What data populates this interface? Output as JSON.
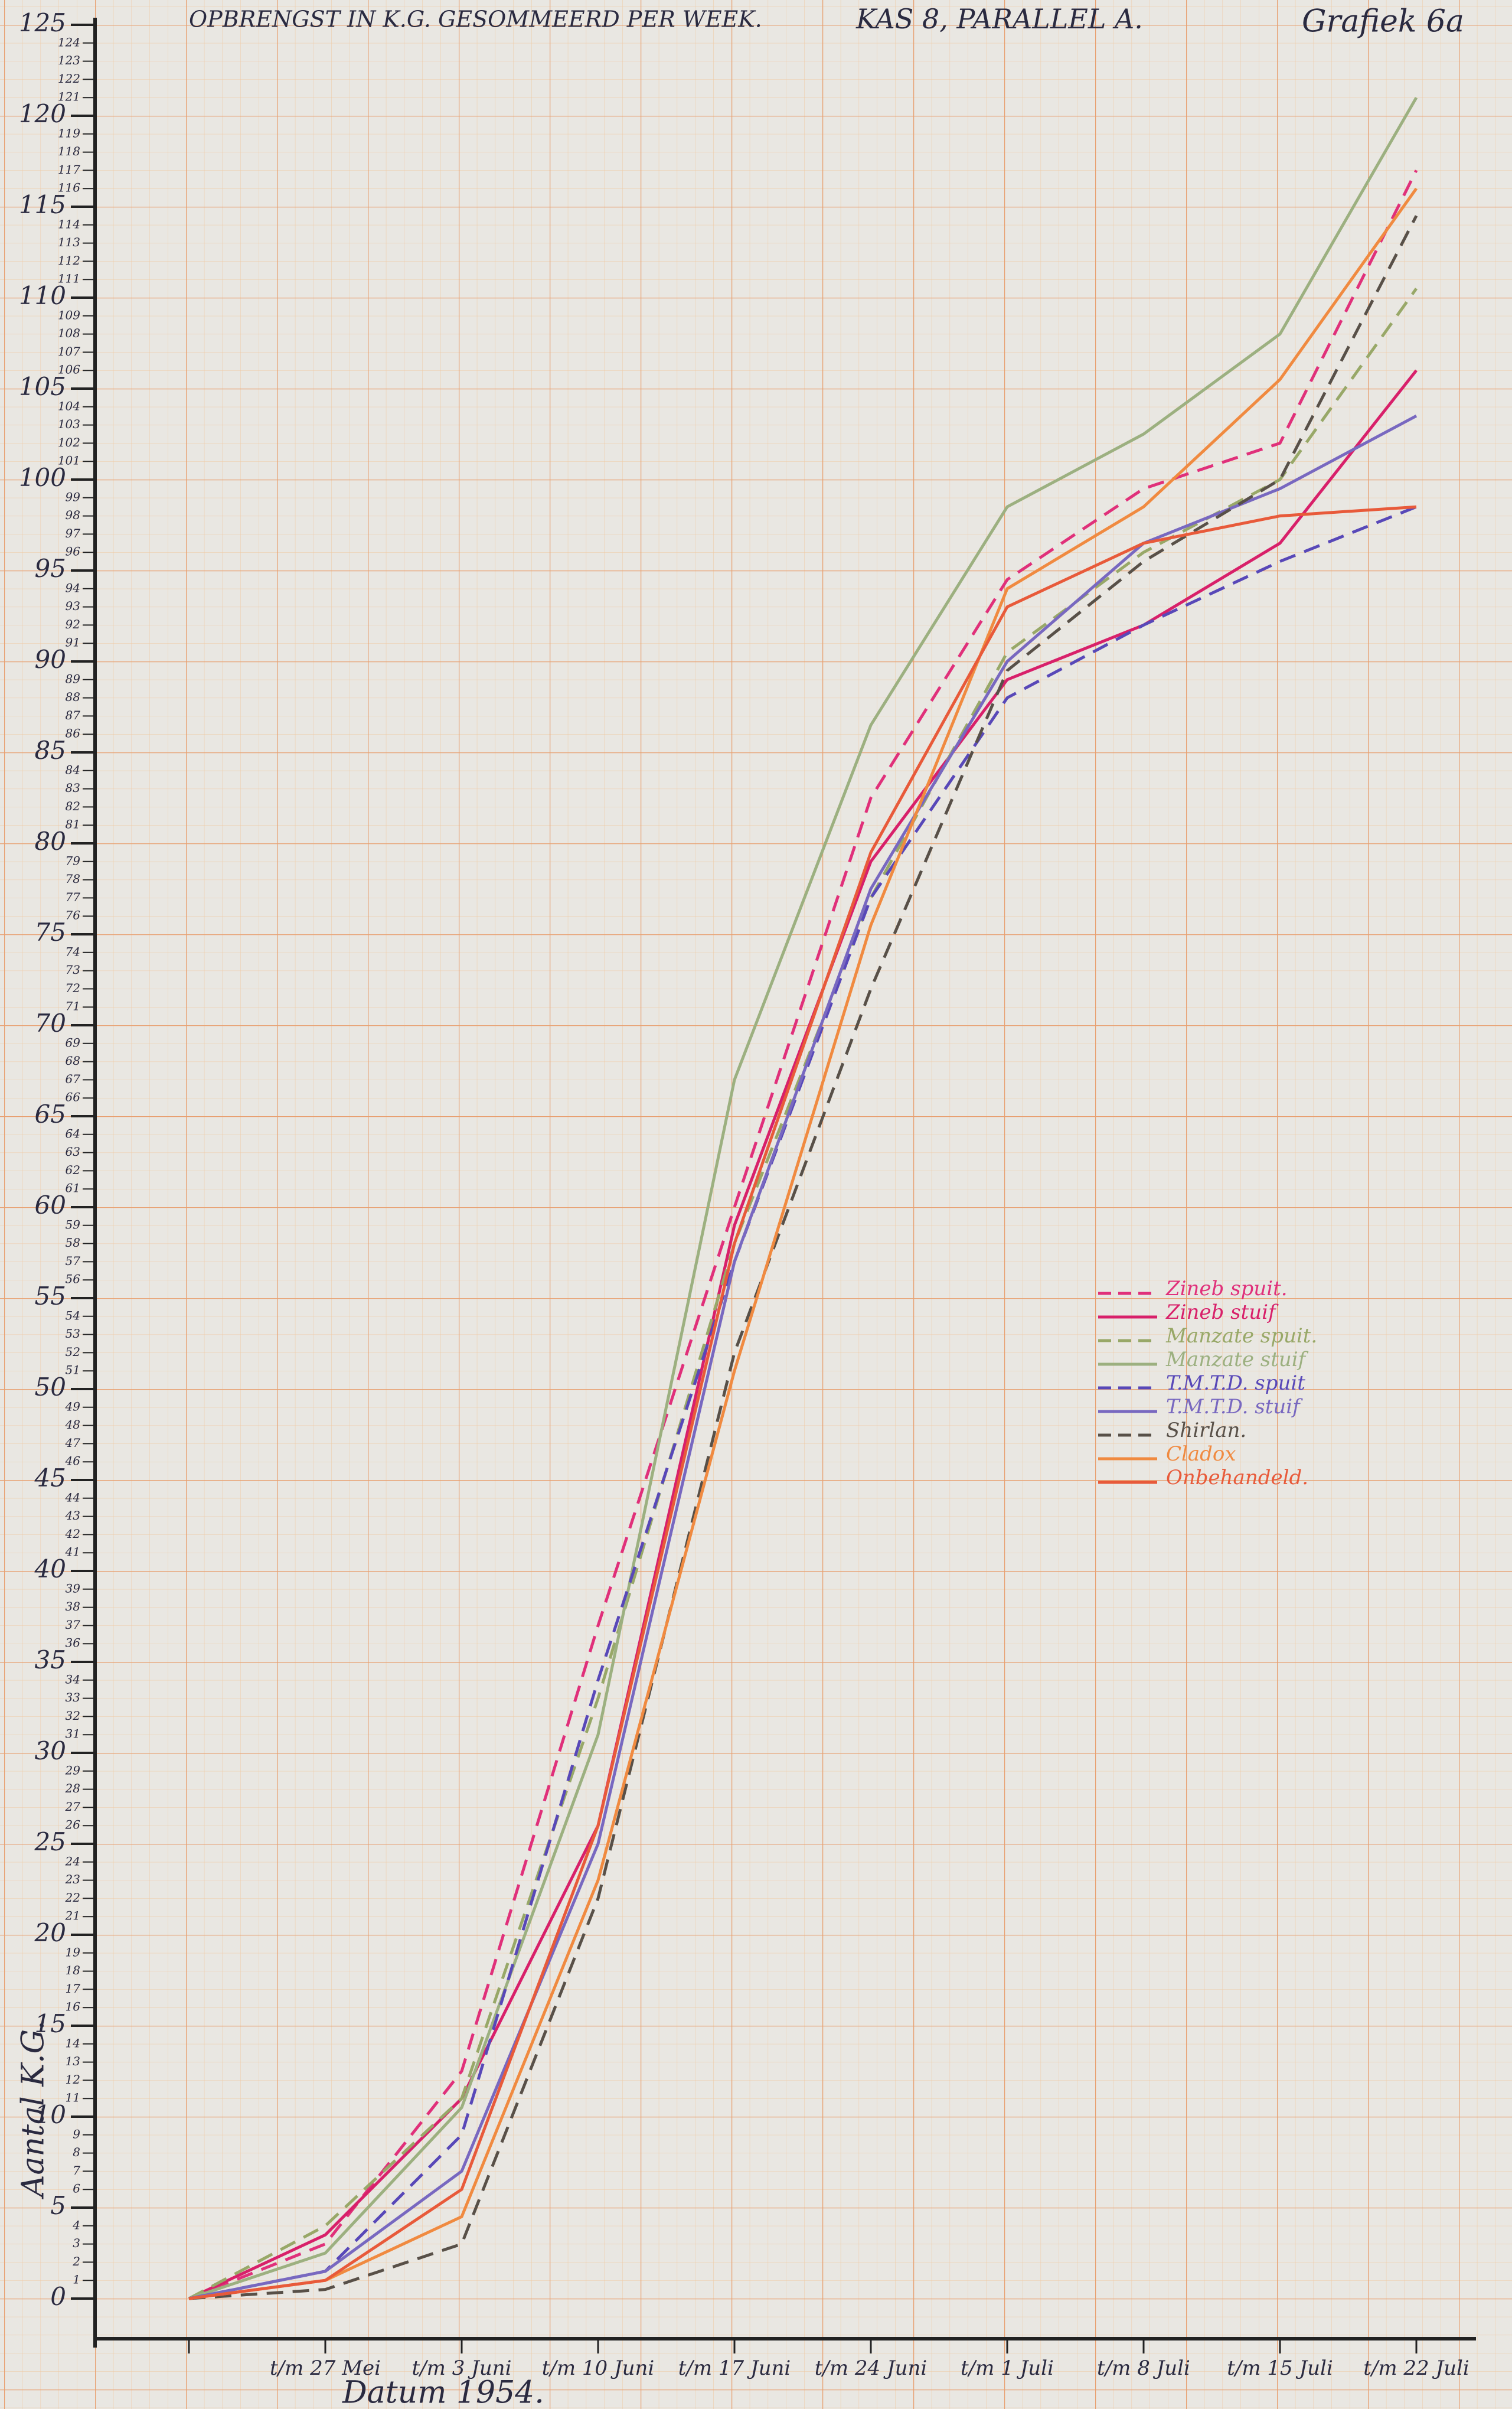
{
  "chart_data": {
    "type": "line",
    "title": "OPBRENGST IN K.G. GESOMMEERD PER WEEK.",
    "subtitle": "KAS 8, PARALLEL A.",
    "annotation": "Grafiek 6a",
    "y_label": "Aantal K.G.",
    "x_label": "Datum 1954.",
    "categories": [
      null,
      "t/m 27 Mei",
      "t/m 3 Juni",
      "t/m 10 Juni",
      "t/m 17 Juni",
      "t/m 24 Juni",
      "t/m 1 Juli",
      "t/m 8 Juli",
      "t/m 15 Juli",
      "t/m 22 Juli"
    ],
    "ylim": [
      0,
      125
    ],
    "yticks": [
      0,
      1,
      2,
      3,
      4,
      5,
      6,
      7,
      8,
      9,
      10,
      11,
      12,
      13,
      14,
      15,
      16,
      17,
      18,
      19,
      20,
      21,
      22,
      23,
      24,
      25,
      26,
      27,
      28,
      29,
      30,
      31,
      32,
      33,
      34,
      35,
      36,
      37,
      38,
      39,
      40,
      41,
      42,
      43,
      44,
      45,
      46,
      47,
      48,
      49,
      50,
      51,
      52,
      53,
      54,
      55,
      56,
      57,
      58,
      59,
      60,
      61,
      62,
      63,
      64,
      65,
      66,
      67,
      68,
      69,
      70,
      71,
      72,
      73,
      74,
      75,
      76,
      77,
      78,
      79,
      80,
      81,
      82,
      83,
      84,
      85,
      86,
      87,
      88,
      89,
      90,
      91,
      92,
      93,
      94,
      95,
      96,
      97,
      98,
      99,
      100,
      101,
      102,
      103,
      104,
      105,
      106,
      107,
      108,
      109,
      110,
      111,
      112,
      113,
      114,
      115,
      116,
      117,
      118,
      119,
      120,
      121,
      122,
      123,
      124,
      125
    ],
    "grid": true,
    "legend": "right",
    "series": [
      {
        "name": "Zineb spuit.",
        "color": "#e0307a",
        "dashed": true,
        "values": [
          0,
          3,
          12.5,
          37,
          60,
          82.5,
          94.5,
          99.5,
          102,
          117
        ]
      },
      {
        "name": "Zineb stuif",
        "color": "#d8206a",
        "dashed": false,
        "values": [
          0,
          3.5,
          11,
          26,
          59,
          79,
          89,
          92,
          96.5,
          106
        ]
      },
      {
        "name": "Manzate spuit.",
        "color": "#98a868",
        "dashed": true,
        "values": [
          0,
          4,
          11,
          33,
          58,
          77,
          90.5,
          96,
          100,
          110.5
        ]
      },
      {
        "name": "Manzate stuif",
        "color": "#9cb080",
        "dashed": false,
        "values": [
          0,
          2.5,
          10.5,
          31,
          67,
          86.5,
          98.5,
          102.5,
          108,
          121
        ]
      },
      {
        "name": "T.M.T.D. spuit",
        "color": "#5848b8",
        "dashed": true,
        "values": [
          0,
          1.5,
          9,
          34,
          57,
          77,
          88,
          92,
          95.5,
          98.5
        ]
      },
      {
        "name": "T.M.T.D. stuif",
        "color": "#7868c0",
        "dashed": false,
        "values": [
          0,
          1.5,
          7,
          25,
          57,
          77.5,
          90,
          96.5,
          99.5,
          103.5
        ]
      },
      {
        "name": "Shirlan.",
        "color": "#585048",
        "dashed": true,
        "values": [
          0,
          0.5,
          3,
          22,
          52,
          72,
          89.5,
          95.5,
          100,
          114.5
        ]
      },
      {
        "name": "Cladox",
        "color": "#f08a40",
        "dashed": false,
        "values": [
          0,
          1,
          4.5,
          23,
          51,
          75.5,
          94,
          98.5,
          105.5,
          116
        ]
      },
      {
        "name": "Onbehandeld.",
        "color": "#e85a3a",
        "dashed": false,
        "values": [
          0,
          1,
          6,
          26,
          58,
          79.5,
          93,
          96.5,
          98,
          98.5
        ]
      }
    ]
  }
}
